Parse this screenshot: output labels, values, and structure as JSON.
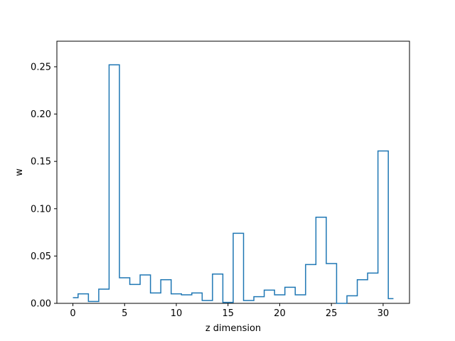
{
  "chart_data": {
    "type": "line",
    "drawstyle": "steps-mid",
    "xlabel": "z dimension",
    "ylabel": "w",
    "title": "",
    "xlim": [
      -1.55,
      32.55
    ],
    "ylim": [
      0.0,
      0.277
    ],
    "xticks": [
      0,
      5,
      10,
      15,
      20,
      25,
      30
    ],
    "xtick_labels": [
      "0",
      "5",
      "10",
      "15",
      "20",
      "25",
      "30"
    ],
    "yticks": [
      0.0,
      0.05,
      0.1,
      0.15,
      0.2,
      0.25
    ],
    "ytick_labels": [
      "0.00",
      "0.05",
      "0.10",
      "0.15",
      "0.20",
      "0.25"
    ],
    "grid": false,
    "line_color": "#1f77b4",
    "x": [
      0,
      1,
      2,
      3,
      4,
      5,
      6,
      7,
      8,
      9,
      10,
      11,
      12,
      13,
      14,
      15,
      16,
      17,
      18,
      19,
      20,
      21,
      22,
      23,
      24,
      25,
      26,
      27,
      28,
      29,
      30,
      31
    ],
    "y": [
      0.006,
      0.01,
      0.002,
      0.015,
      0.252,
      0.027,
      0.02,
      0.03,
      0.011,
      0.025,
      0.01,
      0.009,
      0.011,
      0.003,
      0.031,
      0.001,
      0.074,
      0.003,
      0.007,
      0.014,
      0.009,
      0.017,
      0.009,
      0.041,
      0.091,
      0.042,
      0.0,
      0.008,
      0.025,
      0.032,
      0.161,
      0.005
    ]
  }
}
